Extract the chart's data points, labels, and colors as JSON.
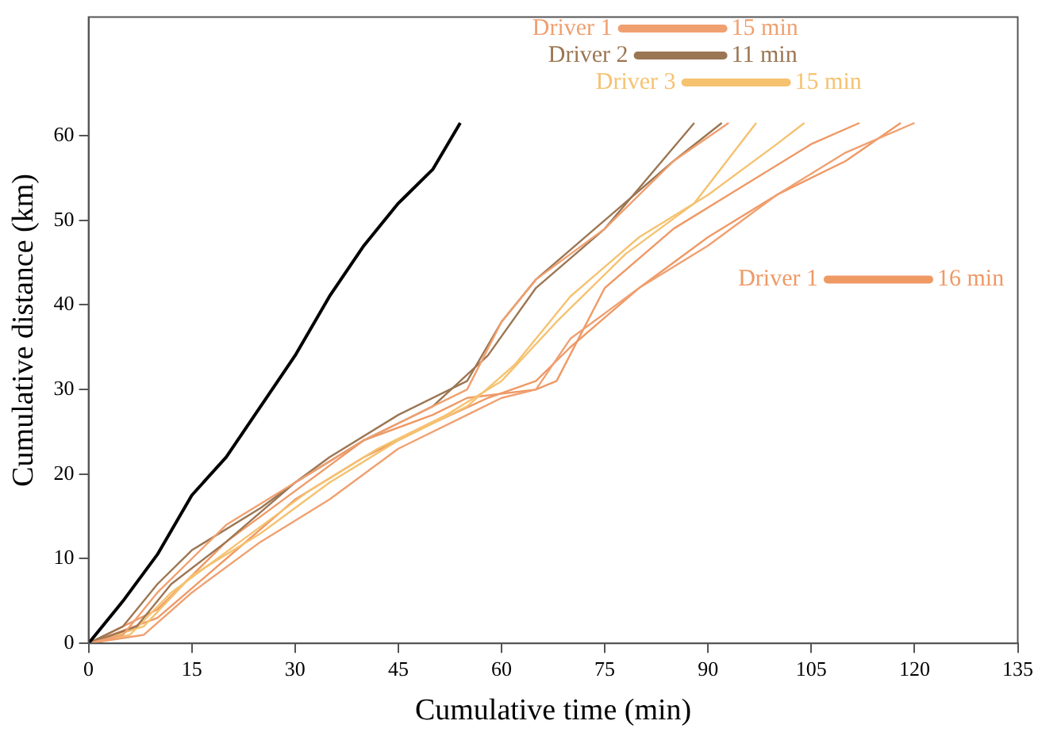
{
  "chart_data": {
    "type": "line",
    "xlabel": "Cumulative time (min)",
    "ylabel": "Cumulative distance (km)",
    "xlim": [
      0,
      135
    ],
    "xticks": [
      0,
      15,
      30,
      45,
      60,
      75,
      90,
      105,
      120,
      135
    ],
    "ylim": [
      0,
      74
    ],
    "yticks": [
      0,
      10,
      20,
      30,
      40,
      50,
      60
    ],
    "grid": false,
    "legend": "top right",
    "marker": "none",
    "line_style": "solid",
    "annotations": [
      "15 min",
      "11 min",
      "15 min",
      "16 min"
    ],
    "series": [
      {
        "color": "#000000",
        "x": [
          0,
          5,
          10,
          15,
          20,
          25,
          30,
          35,
          40,
          45,
          50,
          54
        ],
        "values": [
          0,
          5,
          10.5,
          17.5,
          22,
          28,
          34,
          41,
          47,
          52,
          56,
          61.5
        ]
      },
      {
        "name": "Driver 1",
        "color": "#f0a070",
        "x": [
          0,
          5,
          10,
          15,
          20,
          30,
          40,
          50,
          55,
          60,
          65,
          75,
          85,
          93
        ],
        "values": [
          0,
          1,
          6,
          10,
          14,
          19,
          24,
          28,
          30,
          38,
          43,
          49,
          57,
          61.5
        ]
      },
      {
        "color": "#f0a070",
        "x": [
          0,
          8,
          15,
          25,
          35,
          45,
          55,
          60,
          65,
          70,
          80,
          90,
          100,
          110,
          120
        ],
        "values": [
          0,
          1,
          6,
          12,
          17,
          23,
          27,
          29,
          30,
          36,
          42,
          47,
          53,
          58,
          61.5
        ]
      },
      {
        "name": "Driver 2",
        "color": "#9b7653",
        "x": [
          0,
          5,
          10,
          15,
          25,
          35,
          45,
          55,
          60,
          65,
          75,
          85,
          92
        ],
        "values": [
          0,
          2,
          7,
          11,
          16,
          22,
          27,
          31,
          38,
          43,
          50,
          57,
          61.5
        ]
      },
      {
        "color": "#9b7653",
        "x": [
          0,
          7,
          12,
          20,
          30,
          40,
          50,
          58,
          65,
          75,
          88
        ],
        "values": [
          0,
          2,
          7,
          12,
          19,
          24,
          28,
          34,
          42,
          49,
          61.5
        ]
      },
      {
        "name": "Driver 3",
        "color": "#f5c270",
        "x": [
          0,
          8,
          15,
          25,
          35,
          45,
          55,
          62,
          70,
          80,
          90,
          100,
          104
        ],
        "values": [
          0,
          2,
          8,
          13,
          19,
          24,
          28,
          33,
          41,
          48,
          53,
          59,
          61.5
        ]
      },
      {
        "color": "#f5c270",
        "x": [
          0,
          6,
          12,
          22,
          32,
          42,
          52,
          60,
          68,
          78,
          88,
          97
        ],
        "values": [
          0,
          1,
          6,
          12,
          18,
          23,
          27,
          31,
          38,
          46,
          52,
          61.5
        ]
      },
      {
        "name": "Driver 1",
        "color": "#ef9965",
        "x": [
          0,
          10,
          20,
          30,
          40,
          50,
          58,
          65,
          70,
          80,
          90,
          100,
          110,
          118
        ],
        "values": [
          0,
          3,
          10,
          17,
          22,
          26,
          29,
          31,
          35,
          42,
          48,
          53,
          57,
          61.5
        ]
      },
      {
        "color": "#ef9965",
        "x": [
          0,
          10,
          20,
          30,
          40,
          50,
          55,
          65,
          68,
          75,
          85,
          95,
          105,
          112
        ],
        "values": [
          0,
          4,
          12,
          18,
          24,
          27,
          29,
          30,
          31,
          42,
          49,
          54,
          59,
          61.5
        ]
      }
    ]
  }
}
